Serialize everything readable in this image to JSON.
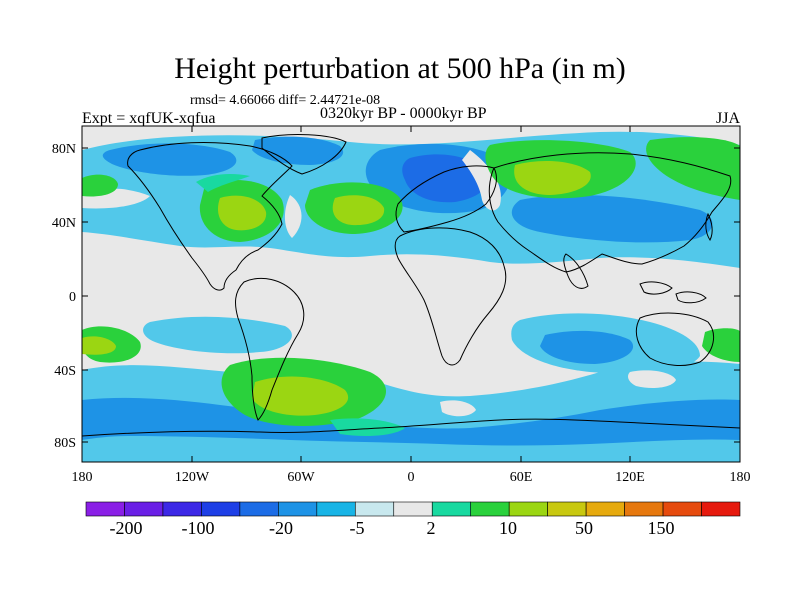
{
  "title": "Height perturbation at 500 hPa (in m)",
  "stats": "rmsd= 4.66066 diff= 2.44721e-08",
  "experiment": "Expt = xqfUK-xqfua",
  "period": "0320kyr BP - 0000kyr BP",
  "season": "JJA",
  "y_ticks": [
    "80N",
    "40N",
    "0",
    "40S",
    "80S"
  ],
  "x_ticks": [
    "180",
    "120W",
    "60W",
    "0",
    "60E",
    "120E",
    "180"
  ],
  "colorbar": {
    "colors": [
      "#8a1fe6",
      "#6a1fe6",
      "#3c28e6",
      "#1e3fe6",
      "#1c6ce6",
      "#1e93e6",
      "#18b4e6",
      "#c8e8ee",
      "#e8e8e8",
      "#19d9a0",
      "#2ad13c",
      "#9bd612",
      "#c8c810",
      "#e6aa0e",
      "#e6780e",
      "#e64b0e",
      "#e61a0e"
    ],
    "labels": [
      "-200",
      "-100",
      "-20",
      "-5",
      "2",
      "10",
      "50",
      "150"
    ]
  },
  "palette": {
    "land_outline": "#000000",
    "neutral": "#e8e8e8",
    "light_blue": "#52c8ea",
    "mid_blue": "#1e93e6",
    "deep_blue": "#1c6ce6",
    "light_green": "#2ad13c",
    "yellow_green": "#9bd612"
  }
}
